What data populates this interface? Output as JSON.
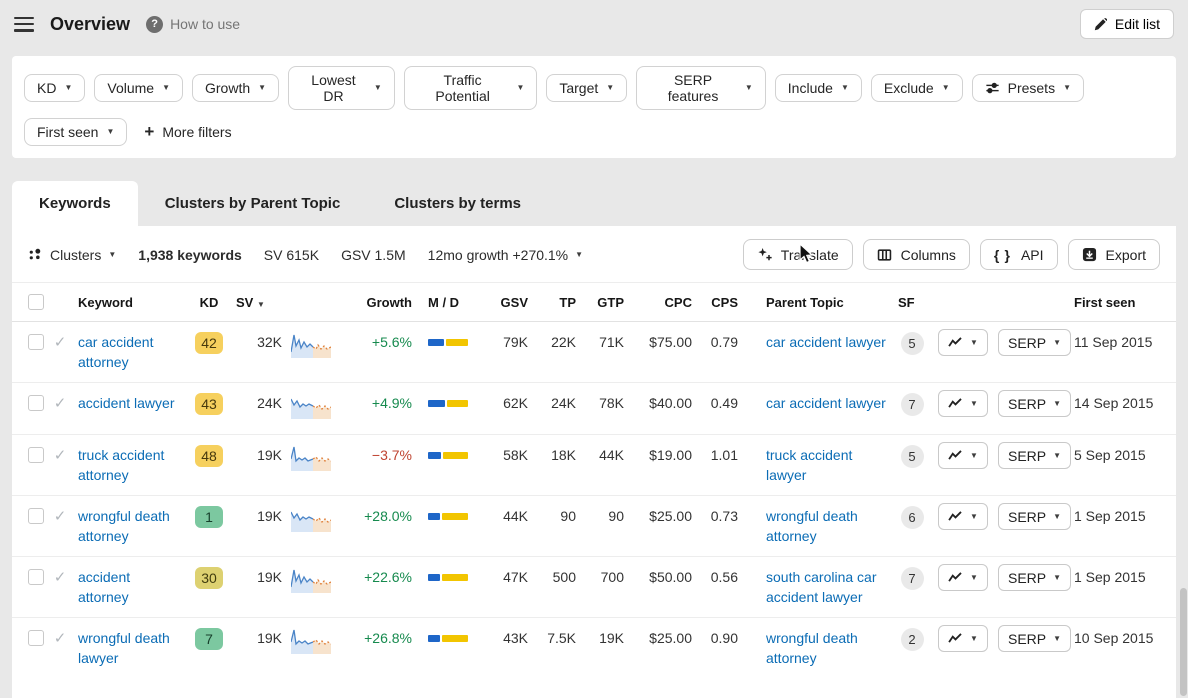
{
  "header": {
    "title": "Overview",
    "help_label": "How to use",
    "edit_list_label": "Edit list"
  },
  "filters": {
    "primary": [
      "KD",
      "Volume",
      "Growth",
      "Lowest DR",
      "Traffic Potential",
      "Target",
      "SERP features",
      "Include",
      "Exclude"
    ],
    "presets_label": "Presets",
    "secondary": [
      "First seen"
    ],
    "more_filters_label": "More filters"
  },
  "tabs": [
    {
      "label": "Keywords",
      "active": true
    },
    {
      "label": "Clusters by Parent Topic",
      "active": false
    },
    {
      "label": "Clusters by terms",
      "active": false
    }
  ],
  "toolbar": {
    "clusters_label": "Clusters",
    "keywords_count": "1,938 keywords",
    "sv_total": "SV 615K",
    "gsv_total": "GSV 1.5M",
    "growth_summary": "12mo growth +270.1%",
    "buttons": {
      "translate": "Translate",
      "columns": "Columns",
      "api": "API",
      "export": "Export"
    }
  },
  "table": {
    "headers": {
      "keyword": "Keyword",
      "kd": "KD",
      "sv": "SV",
      "growth": "Growth",
      "md": "M / D",
      "gsv": "GSV",
      "tp": "TP",
      "gtp": "GTP",
      "cpc": "CPC",
      "cps": "CPS",
      "parent_topic": "Parent Topic",
      "sf": "SF",
      "first_seen": "First seen"
    },
    "serp_label": "SERP",
    "rows": [
      {
        "keyword": "car accident attorney",
        "kd": "42",
        "kd_color": "amber",
        "sv": "32K",
        "growth": "+5.6%",
        "trend": "up",
        "md_blue": 40,
        "gsv": "79K",
        "tp": "22K",
        "gtp": "71K",
        "cpc": "$75.00",
        "cps": "0.79",
        "parent_topic": "car accident lawyer",
        "sf": "5",
        "first_seen": "11 Sep 2015",
        "spark": 0
      },
      {
        "keyword": "accident lawyer",
        "kd": "43",
        "kd_color": "amber",
        "sv": "24K",
        "growth": "+4.9%",
        "trend": "up",
        "md_blue": 42,
        "gsv": "62K",
        "tp": "24K",
        "gtp": "78K",
        "cpc": "$40.00",
        "cps": "0.49",
        "parent_topic": "car accident lawyer",
        "sf": "7",
        "first_seen": "14 Sep 2015",
        "spark": 1
      },
      {
        "keyword": "truck accident attorney",
        "kd": "48",
        "kd_color": "amber",
        "sv": "19K",
        "growth": "−3.7%",
        "trend": "down",
        "md_blue": 32,
        "gsv": "58K",
        "tp": "18K",
        "gtp": "44K",
        "cpc": "$19.00",
        "cps": "1.01",
        "parent_topic": "truck accident lawyer",
        "sf": "5",
        "first_seen": "5 Sep 2015",
        "spark": 2
      },
      {
        "keyword": "wrongful death attorney",
        "kd": "1",
        "kd_color": "green",
        "sv": "19K",
        "growth": "+28.0%",
        "trend": "up",
        "md_blue": 30,
        "gsv": "44K",
        "tp": "90",
        "gtp": "90",
        "cpc": "$25.00",
        "cps": "0.73",
        "parent_topic": "wrongful death attorney",
        "sf": "6",
        "first_seen": "1 Sep 2015",
        "spark": 1
      },
      {
        "keyword": "accident attorney",
        "kd": "30",
        "kd_color": "olive",
        "sv": "19K",
        "growth": "+22.6%",
        "trend": "up",
        "md_blue": 30,
        "gsv": "47K",
        "tp": "500",
        "gtp": "700",
        "cpc": "$50.00",
        "cps": "0.56",
        "parent_topic": "south carolina car accident lawyer",
        "sf": "7",
        "first_seen": "1 Sep 2015",
        "spark": 0
      },
      {
        "keyword": "wrongful death lawyer",
        "kd": "7",
        "kd_color": "green",
        "sv": "19K",
        "growth": "+26.8%",
        "trend": "up",
        "md_blue": 30,
        "gsv": "43K",
        "tp": "7.5K",
        "gtp": "19K",
        "cpc": "$25.00",
        "cps": "0.90",
        "parent_topic": "wrongful death attorney",
        "sf": "2",
        "first_seen": "10 Sep 2015",
        "spark": 2
      }
    ]
  }
}
